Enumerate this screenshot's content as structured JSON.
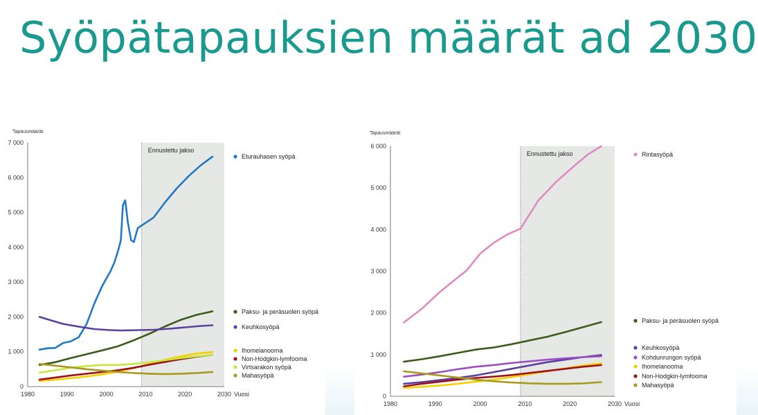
{
  "slide": {
    "title": "Syöpätapauksien määrät ad 2030"
  },
  "chart_data": [
    {
      "type": "line",
      "ylabel": "Tapausmäärät",
      "xlabel": "Vuosi",
      "xlim": [
        1980,
        2030
      ],
      "ylim": [
        0,
        7000
      ],
      "x_ticks": [
        "1980",
        "1990",
        "2000",
        "2010",
        "2020",
        "2030"
      ],
      "y_ticks": [
        "0",
        "1 000",
        "2 000",
        "3 000",
        "4 000",
        "5 000",
        "6 000",
        "7 000"
      ],
      "forecast_region": {
        "label": "Ennustettu jakso",
        "start": 2009,
        "end": 2030,
        "color": "#e6e8e6"
      },
      "series": [
        {
          "name": "Eturauhasen syöpä",
          "color": "#1f77c8",
          "points": [
            [
              1983,
              1060
            ],
            [
              1985,
              1100
            ],
            [
              1987,
              1110
            ],
            [
              1989,
              1250
            ],
            [
              1991,
              1300
            ],
            [
              1993,
              1420
            ],
            [
              1995,
              1800
            ],
            [
              1997,
              2400
            ],
            [
              1999,
              2900
            ],
            [
              2000,
              3100
            ],
            [
              2001,
              3300
            ],
            [
              2002,
              3550
            ],
            [
              2003,
              3900
            ],
            [
              2003.7,
              4200
            ],
            [
              2004.2,
              5200
            ],
            [
              2004.8,
              5350
            ],
            [
              2005.5,
              4700
            ],
            [
              2006.3,
              4200
            ],
            [
              2007,
              4150
            ],
            [
              2008,
              4550
            ],
            [
              2010,
              4700
            ],
            [
              2012,
              4850
            ],
            [
              2015,
              5300
            ],
            [
              2018,
              5700
            ],
            [
              2021,
              6050
            ],
            [
              2024,
              6350
            ],
            [
              2027,
              6600
            ]
          ]
        },
        {
          "name": "Paksu- ja peräsuolen syöpä",
          "color": "#3d5a1a",
          "points": [
            [
              1983,
              620
            ],
            [
              1987,
              700
            ],
            [
              1991,
              820
            ],
            [
              1995,
              930
            ],
            [
              1999,
              1040
            ],
            [
              2003,
              1160
            ],
            [
              2007,
              1330
            ],
            [
              2011,
              1520
            ],
            [
              2015,
              1730
            ],
            [
              2019,
              1920
            ],
            [
              2023,
              2060
            ],
            [
              2027,
              2160
            ]
          ]
        },
        {
          "name": "Keuhkosyöpä",
          "color": "#5a3fa0",
          "points": [
            [
              1983,
              2000
            ],
            [
              1986,
              1900
            ],
            [
              1989,
              1800
            ],
            [
              1993,
              1720
            ],
            [
              1997,
              1650
            ],
            [
              2001,
              1620
            ],
            [
              2004,
              1610
            ],
            [
              2008,
              1620
            ],
            [
              2012,
              1630
            ],
            [
              2016,
              1660
            ],
            [
              2020,
              1700
            ],
            [
              2024,
              1740
            ],
            [
              2027,
              1760
            ]
          ]
        },
        {
          "name": "Ihomelanooma",
          "color": "#f5d000",
          "points": [
            [
              1983,
              160
            ],
            [
              1987,
              200
            ],
            [
              1991,
              240
            ],
            [
              1995,
              290
            ],
            [
              1999,
              350
            ],
            [
              2003,
              430
            ],
            [
              2007,
              530
            ],
            [
              2011,
              650
            ],
            [
              2015,
              770
            ],
            [
              2019,
              870
            ],
            [
              2023,
              950
            ],
            [
              2027,
              990
            ]
          ]
        },
        {
          "name": "Non-Hodgkin-lymfooma",
          "color": "#a0101a",
          "points": [
            [
              1983,
              200
            ],
            [
              1987,
              260
            ],
            [
              1991,
              320
            ],
            [
              1995,
              370
            ],
            [
              1999,
              420
            ],
            [
              2003,
              470
            ],
            [
              2007,
              540
            ],
            [
              2011,
              630
            ],
            [
              2015,
              710
            ],
            [
              2019,
              790
            ],
            [
              2023,
              860
            ],
            [
              2027,
              910
            ]
          ]
        },
        {
          "name": "Virtsarakon syöpä",
          "color": "#c8e640",
          "points": [
            [
              1983,
              400
            ],
            [
              1987,
              470
            ],
            [
              1991,
              540
            ],
            [
              1995,
              590
            ],
            [
              1999,
              620
            ],
            [
              2003,
              620
            ],
            [
              2007,
              650
            ],
            [
              2011,
              700
            ],
            [
              2015,
              760
            ],
            [
              2019,
              820
            ],
            [
              2023,
              870
            ],
            [
              2027,
              910
            ]
          ]
        },
        {
          "name": "Mahasyöpä",
          "color": "#a89a20",
          "points": [
            [
              1983,
              650
            ],
            [
              1987,
              600
            ],
            [
              1991,
              550
            ],
            [
              1995,
              500
            ],
            [
              1999,
              460
            ],
            [
              2003,
              420
            ],
            [
              2007,
              390
            ],
            [
              2011,
              370
            ],
            [
              2015,
              360
            ],
            [
              2019,
              370
            ],
            [
              2023,
              390
            ],
            [
              2027,
              420
            ]
          ]
        }
      ]
    },
    {
      "type": "line",
      "ylabel": "Tapausmäärät",
      "xlabel": "Vuosi",
      "xlim": [
        1980,
        2030
      ],
      "ylim": [
        0,
        6000
      ],
      "x_ticks": [
        "1980",
        "1990",
        "2000",
        "2010",
        "2020",
        "2030"
      ],
      "y_ticks": [
        "0",
        "1 000",
        "2 000",
        "3 000",
        "4 000",
        "5 000",
        "6 000"
      ],
      "forecast_region": {
        "label": "Ennustettu jakso",
        "start": 2009,
        "end": 2030,
        "color": "#e6e8e6"
      },
      "series": [
        {
          "name": "Rintasyöpä",
          "color": "#e08ac2",
          "points": [
            [
              1983,
              1770
            ],
            [
              1987,
              2100
            ],
            [
              1991,
              2500
            ],
            [
              1995,
              2850
            ],
            [
              1997,
              3020
            ],
            [
              2000,
              3420
            ],
            [
              2003,
              3680
            ],
            [
              2006,
              3880
            ],
            [
              2009,
              4020
            ],
            [
              2013,
              4700
            ],
            [
              2017,
              5150
            ],
            [
              2021,
              5530
            ],
            [
              2024,
              5800
            ],
            [
              2027,
              6000
            ]
          ]
        },
        {
          "name": "Paksu- ja peräsuolen syöpä",
          "color": "#3d5a1a",
          "points": [
            [
              1983,
              830
            ],
            [
              1987,
              890
            ],
            [
              1991,
              960
            ],
            [
              1995,
              1040
            ],
            [
              1999,
              1120
            ],
            [
              2003,
              1170
            ],
            [
              2007,
              1250
            ],
            [
              2011,
              1340
            ],
            [
              2015,
              1430
            ],
            [
              2019,
              1540
            ],
            [
              2023,
              1660
            ],
            [
              2027,
              1780
            ]
          ]
        },
        {
          "name": "Keuhkosyöpä",
          "color": "#5a3fa0",
          "points": [
            [
              1983,
              300
            ],
            [
              1987,
              340
            ],
            [
              1991,
              390
            ],
            [
              1995,
              440
            ],
            [
              1999,
              500
            ],
            [
              2003,
              580
            ],
            [
              2007,
              660
            ],
            [
              2011,
              740
            ],
            [
              2015,
              820
            ],
            [
              2019,
              880
            ],
            [
              2023,
              940
            ],
            [
              2027,
              990
            ]
          ]
        },
        {
          "name": "Kohdunrungon syöpä",
          "color": "#9b4fc0",
          "points": [
            [
              1983,
              470
            ],
            [
              1987,
              520
            ],
            [
              1991,
              580
            ],
            [
              1995,
              650
            ],
            [
              1999,
              710
            ],
            [
              2003,
              750
            ],
            [
              2007,
              800
            ],
            [
              2011,
              840
            ],
            [
              2015,
              880
            ],
            [
              2019,
              910
            ],
            [
              2023,
              940
            ],
            [
              2027,
              960
            ]
          ]
        },
        {
          "name": "Ihomelanooma",
          "color": "#f5d000",
          "points": [
            [
              1983,
              200
            ],
            [
              1987,
              230
            ],
            [
              1991,
              260
            ],
            [
              1995,
              300
            ],
            [
              1999,
              350
            ],
            [
              2003,
              400
            ],
            [
              2007,
              460
            ],
            [
              2011,
              530
            ],
            [
              2015,
              600
            ],
            [
              2019,
              670
            ],
            [
              2023,
              740
            ],
            [
              2027,
              790
            ]
          ]
        },
        {
          "name": "Non-Hodgkin-lymfooma",
          "color": "#a0101a",
          "points": [
            [
              1983,
              240
            ],
            [
              1987,
              300
            ],
            [
              1991,
              350
            ],
            [
              1995,
              400
            ],
            [
              1999,
              440
            ],
            [
              2003,
              470
            ],
            [
              2007,
              510
            ],
            [
              2011,
              560
            ],
            [
              2015,
              610
            ],
            [
              2019,
              660
            ],
            [
              2023,
              710
            ],
            [
              2027,
              750
            ]
          ]
        },
        {
          "name": "Mahasyöpä",
          "color": "#a89a20",
          "points": [
            [
              1983,
              600
            ],
            [
              1987,
              550
            ],
            [
              1991,
              500
            ],
            [
              1995,
              450
            ],
            [
              1999,
              400
            ],
            [
              2003,
              360
            ],
            [
              2007,
              330
            ],
            [
              2011,
              310
            ],
            [
              2015,
              300
            ],
            [
              2019,
              300
            ],
            [
              2023,
              310
            ],
            [
              2027,
              340
            ]
          ]
        }
      ]
    }
  ]
}
